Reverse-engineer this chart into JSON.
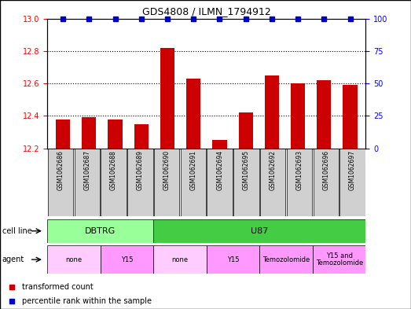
{
  "title": "GDS4808 / ILMN_1794912",
  "samples": [
    "GSM1062686",
    "GSM1062687",
    "GSM1062688",
    "GSM1062689",
    "GSM1062690",
    "GSM1062691",
    "GSM1062694",
    "GSM1062695",
    "GSM1062692",
    "GSM1062693",
    "GSM1062696",
    "GSM1062697"
  ],
  "transformed_counts": [
    12.38,
    12.39,
    12.38,
    12.35,
    12.82,
    12.63,
    12.25,
    12.42,
    12.65,
    12.6,
    12.62,
    12.59
  ],
  "percentile_ranks": [
    100,
    100,
    100,
    100,
    100,
    100,
    100,
    100,
    100,
    100,
    100,
    100
  ],
  "bar_color": "#cc0000",
  "dot_color": "#0000cc",
  "ylim_left": [
    12.2,
    13.0
  ],
  "ylim_right": [
    0,
    100
  ],
  "yticks_left": [
    12.2,
    12.4,
    12.6,
    12.8,
    13.0
  ],
  "yticks_right": [
    0,
    25,
    50,
    75,
    100
  ],
  "cell_line_groups": [
    {
      "label": "DBTRG",
      "start": 0,
      "end": 3,
      "color": "#99ff99"
    },
    {
      "label": "U87",
      "start": 4,
      "end": 11,
      "color": "#44cc44"
    }
  ],
  "agent_groups": [
    {
      "label": "none",
      "start": 0,
      "end": 1,
      "color": "#ffccff"
    },
    {
      "label": "Y15",
      "start": 2,
      "end": 3,
      "color": "#ff99ff"
    },
    {
      "label": "none",
      "start": 4,
      "end": 5,
      "color": "#ffccff"
    },
    {
      "label": "Y15",
      "start": 6,
      "end": 7,
      "color": "#ff99ff"
    },
    {
      "label": "Temozolomide",
      "start": 8,
      "end": 9,
      "color": "#ff99ff"
    },
    {
      "label": "Y15 and\nTemozolomide",
      "start": 10,
      "end": 11,
      "color": "#ff99ff"
    }
  ],
  "cell_line_row_label": "cell line",
  "agent_row_label": "agent",
  "legend_bar_label": "transformed count",
  "legend_dot_label": "percentile rank within the sample",
  "background_color": "#ffffff",
  "bar_width": 0.55,
  "sample_box_color": "#d0d0d0"
}
